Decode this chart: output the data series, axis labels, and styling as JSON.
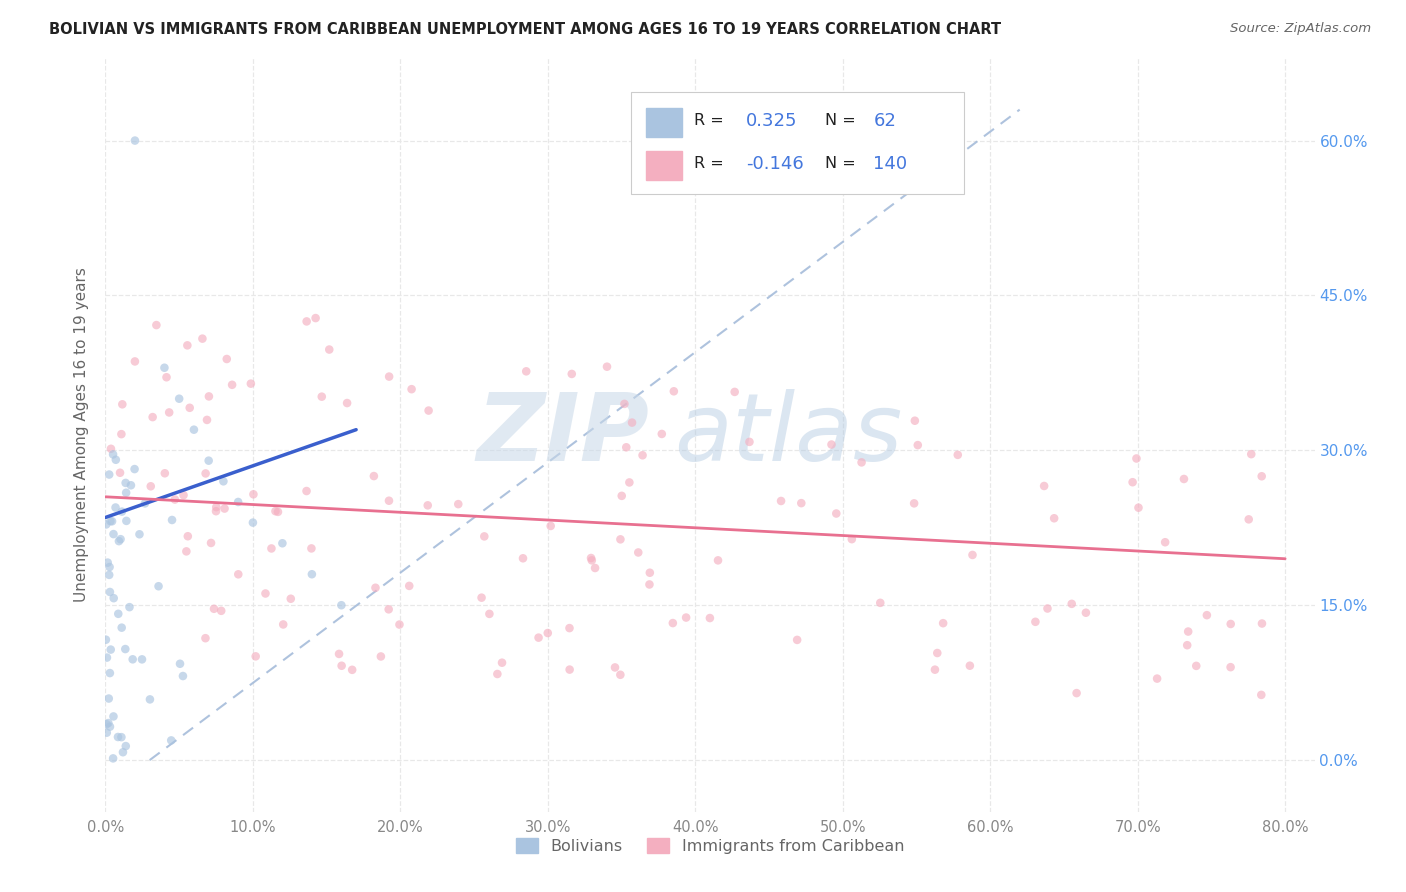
{
  "title": "BOLIVIAN VS IMMIGRANTS FROM CARIBBEAN UNEMPLOYMENT AMONG AGES 16 TO 19 YEARS CORRELATION CHART",
  "source": "Source: ZipAtlas.com",
  "ylabel_label": "Unemployment Among Ages 16 to 19 years",
  "xlim": [
    0.0,
    0.82
  ],
  "ylim": [
    -0.05,
    0.68
  ],
  "x_tick_vals": [
    0.0,
    0.1,
    0.2,
    0.3,
    0.4,
    0.5,
    0.6,
    0.7,
    0.8
  ],
  "x_tick_labels": [
    "0.0%",
    "10.0%",
    "20.0%",
    "30.0%",
    "40.0%",
    "50.0%",
    "60.0%",
    "70.0%",
    "80.0%"
  ],
  "y_tick_vals": [
    0.0,
    0.15,
    0.3,
    0.45,
    0.6
  ],
  "y_tick_labels": [
    "0.0%",
    "15.0%",
    "30.0%",
    "45.0%",
    "60.0%"
  ],
  "legend_entries": [
    {
      "label": "Bolivians",
      "color": "#aac4e0",
      "R": "0.325",
      "N": "62"
    },
    {
      "label": "Immigrants from Caribbean",
      "color": "#f4afc0",
      "R": "-0.146",
      "N": "140"
    }
  ],
  "watermark_zip": "ZIP",
  "watermark_atlas": "atlas",
  "dot_size": 38,
  "dot_alpha": 0.65,
  "line_bolivians_color": "#3a5fcd",
  "line_caribbean_color": "#e87090",
  "trend_line_dashed_color": "#a0b8d8",
  "grid_color": "#e8e8e8",
  "title_color": "#222222",
  "source_color": "#666666",
  "right_axis_tick_color": "#5599ee",
  "legend_R_color": "#222222",
  "legend_N_color": "#222222",
  "legend_val_color": "#4477dd"
}
